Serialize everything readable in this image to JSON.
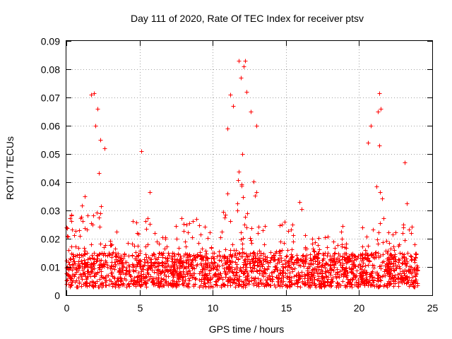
{
  "chart_data": {
    "type": "scatter",
    "title": "Day 111 of 2020, Rate Of TEC Index for receiver ptsv",
    "xlabel": "GPS time / hours",
    "ylabel": "ROTI / TECUs",
    "xlim": [
      0,
      25
    ],
    "ylim": [
      0,
      0.09
    ],
    "xticks": [
      0,
      5,
      10,
      15,
      20,
      25
    ],
    "yticks": [
      0,
      0.01,
      0.02,
      0.03,
      0.04,
      0.05,
      0.06,
      0.07,
      0.08,
      0.09
    ],
    "grid": true,
    "marker": "+",
    "series": [
      {
        "name": "ROTI",
        "color": "#ff0000",
        "x_range": [
          0,
          24
        ],
        "baseline_roti": [
          0.003,
          0.015
        ],
        "notable_points": [
          {
            "x": 1.7,
            "y": 0.071
          },
          {
            "x": 1.9,
            "y": 0.0715
          },
          {
            "x": 2.1,
            "y": 0.066
          },
          {
            "x": 2.0,
            "y": 0.06
          },
          {
            "x": 2.3,
            "y": 0.055
          },
          {
            "x": 2.6,
            "y": 0.052
          },
          {
            "x": 5.1,
            "y": 0.051
          },
          {
            "x": 11.2,
            "y": 0.071
          },
          {
            "x": 11.4,
            "y": 0.067
          },
          {
            "x": 11.8,
            "y": 0.083
          },
          {
            "x": 12.1,
            "y": 0.081
          },
          {
            "x": 12.2,
            "y": 0.083
          },
          {
            "x": 11.9,
            "y": 0.077
          },
          {
            "x": 12.3,
            "y": 0.072
          },
          {
            "x": 12.6,
            "y": 0.065
          },
          {
            "x": 13.0,
            "y": 0.06
          },
          {
            "x": 11.0,
            "y": 0.059
          },
          {
            "x": 21.4,
            "y": 0.0715
          },
          {
            "x": 21.5,
            "y": 0.066
          },
          {
            "x": 21.3,
            "y": 0.065
          },
          {
            "x": 20.8,
            "y": 0.06
          },
          {
            "x": 21.4,
            "y": 0.053
          },
          {
            "x": 20.6,
            "y": 0.054
          },
          {
            "x": 23.1,
            "y": 0.047
          },
          {
            "x": 24.0,
            "y": 0.01
          }
        ]
      }
    ]
  }
}
